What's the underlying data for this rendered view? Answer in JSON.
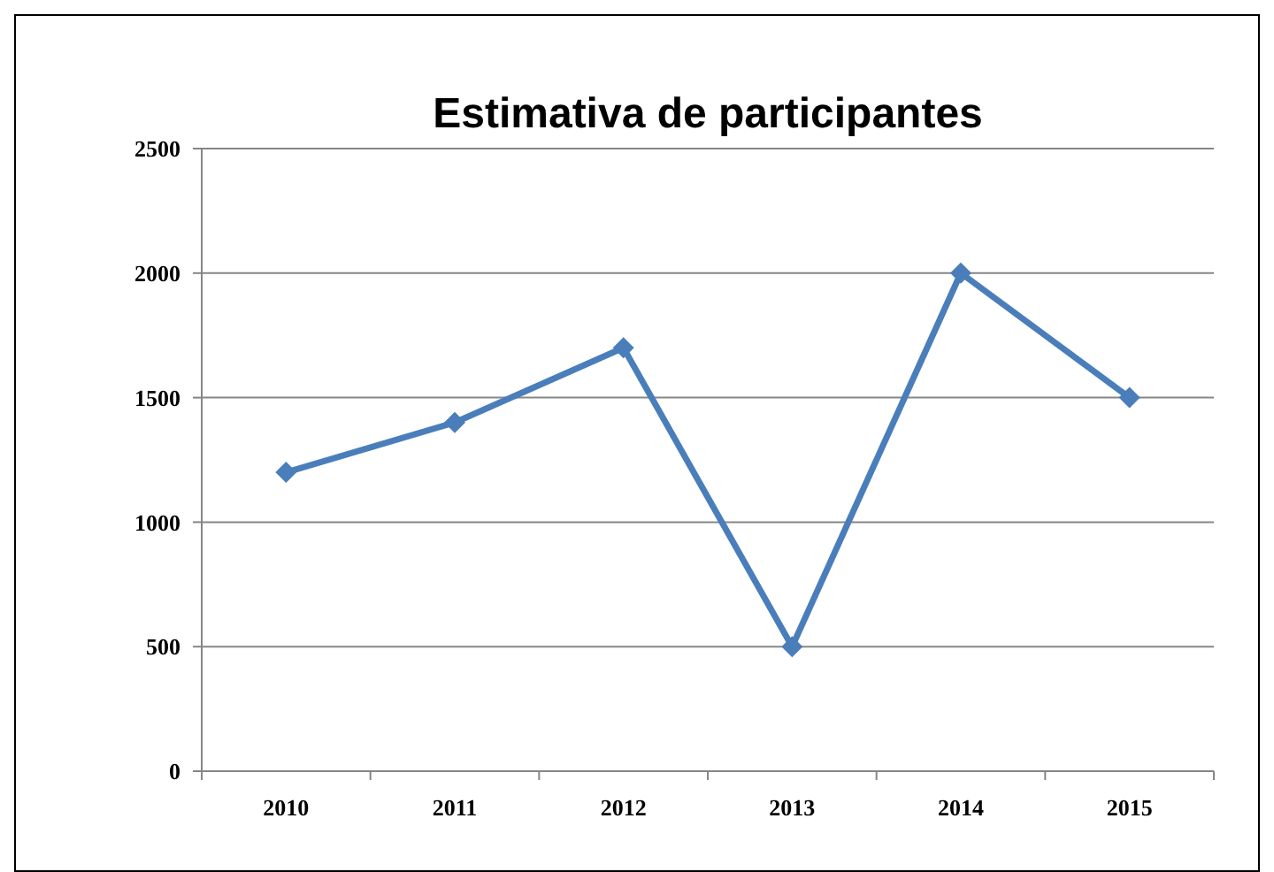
{
  "chart_data": {
    "type": "line",
    "title": "Estimativa de participantes",
    "categories": [
      "2010",
      "2011",
      "2012",
      "2013",
      "2014",
      "2015"
    ],
    "series": [
      {
        "color": "#4a7ebb",
        "values": [
          1200,
          1400,
          1700,
          500,
          2000,
          1500
        ]
      }
    ],
    "ylim": [
      0,
      2500
    ],
    "yticks": [
      0,
      500,
      1000,
      1500,
      2000,
      2500
    ],
    "grid": "y",
    "marker": "diamond",
    "line_style": "solid"
  }
}
